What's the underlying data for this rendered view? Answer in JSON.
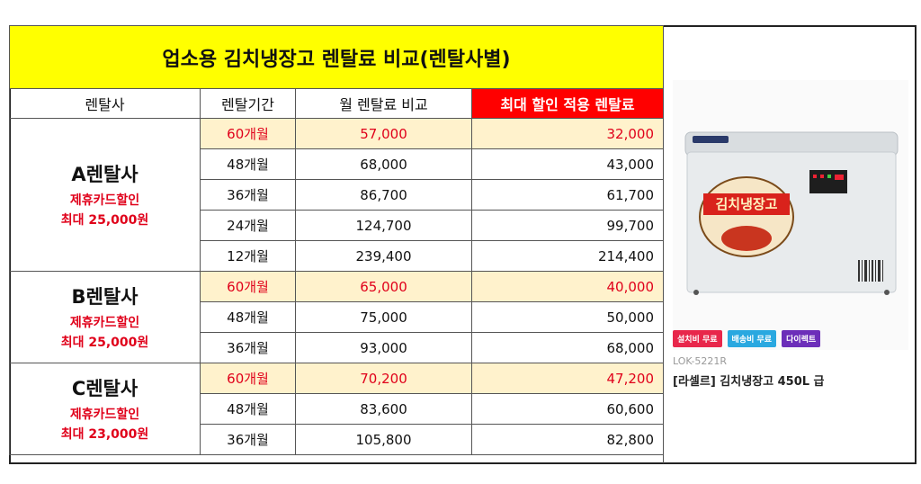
{
  "title": "업소용 김치냉장고 렌탈료 비교(렌탈사별)",
  "headers": [
    "렌탈사",
    "렌탈기간",
    "월 렌탈료 비교",
    "최대 할인 적용 렌탈료"
  ],
  "companies": [
    {
      "name": "A렌탈사",
      "note1": "제휴카드할인",
      "note2": "최대 25,000원",
      "rows": [
        {
          "period": "60개월",
          "monthly": "57,000",
          "discounted": "32,000"
        },
        {
          "period": "48개월",
          "monthly": "68,000",
          "discounted": "43,000"
        },
        {
          "period": "36개월",
          "monthly": "86,700",
          "discounted": "61,700"
        },
        {
          "period": "24개월",
          "monthly": "124,700",
          "discounted": "99,700"
        },
        {
          "period": "12개월",
          "monthly": "239,400",
          "discounted": "214,400"
        }
      ]
    },
    {
      "name": "B렌탈사",
      "note1": "제휴카드할인",
      "note2": "최대 25,000원",
      "rows": [
        {
          "period": "60개월",
          "monthly": "65,000",
          "discounted": "40,000"
        },
        {
          "period": "48개월",
          "monthly": "75,000",
          "discounted": "50,000"
        },
        {
          "period": "36개월",
          "monthly": "93,000",
          "discounted": "68,000"
        }
      ]
    },
    {
      "name": "C렌탈사",
      "note1": "제휴카드할인",
      "note2": "최대 23,000원",
      "rows": [
        {
          "period": "60개월",
          "monthly": "70,200",
          "discounted": "47,200"
        },
        {
          "period": "48개월",
          "monthly": "83,600",
          "discounted": "60,600"
        },
        {
          "period": "36개월",
          "monthly": "105,800",
          "discounted": "82,800"
        }
      ]
    }
  ],
  "product": {
    "label_on_box": "김치냉장고",
    "tags": [
      {
        "text": "설치비 무료",
        "color": "#e8274b"
      },
      {
        "text": "배송비 무료",
        "color": "#29a8e0"
      },
      {
        "text": "다이렉트",
        "color": "#6c2eb9"
      }
    ],
    "model": "LOK-5221R",
    "name": "[라셀르] 김치냉장고 450L 급"
  }
}
